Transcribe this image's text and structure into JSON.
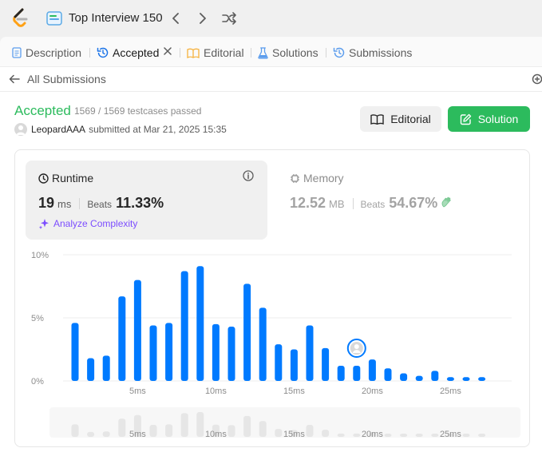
{
  "topbar": {
    "list_title": "Top Interview 150",
    "icons": [
      "leetcode-logo",
      "list-icon",
      "chevron-left-icon",
      "chevron-right-icon",
      "shuffle-icon"
    ]
  },
  "tabs": [
    {
      "label": "Description",
      "icon": "description-icon"
    },
    {
      "label": "Accepted",
      "icon": "history-icon",
      "active": true
    },
    {
      "label": "Editorial",
      "icon": "book-icon"
    },
    {
      "label": "Solutions",
      "icon": "flask-icon"
    },
    {
      "label": "Submissions",
      "icon": "history-icon"
    }
  ],
  "subbar": {
    "back_label": "All Submissions"
  },
  "submission": {
    "status": "Accepted",
    "testcases": "1569 / 1569 testcases passed",
    "author": "LeopardAAA",
    "submitted_text": "submitted at Mar 21, 2025 15:35"
  },
  "actions": {
    "editorial_label": "Editorial",
    "solution_label": "Solution"
  },
  "runtime": {
    "title": "Runtime",
    "value": "19",
    "unit": "ms",
    "beats_label": "Beats",
    "beats_value": "11.33%",
    "analyze_label": "Analyze Complexity"
  },
  "memory": {
    "title": "Memory",
    "value": "12.52",
    "unit": "MB",
    "beats_label": "Beats",
    "beats_value": "54.67%"
  },
  "colors": {
    "accepted": "#2cbb5d",
    "bar": "#007aff",
    "bar_muted": "#e6e6e6",
    "analyze": "#7c4dff"
  },
  "chart_data": {
    "type": "bar",
    "x": [
      1,
      2,
      3,
      4,
      5,
      6,
      7,
      8,
      9,
      10,
      11,
      12,
      13,
      14,
      15,
      16,
      17,
      18,
      19,
      20,
      21,
      22,
      23,
      24,
      25,
      26,
      27
    ],
    "values": [
      4.6,
      1.8,
      2.0,
      6.7,
      8.0,
      4.4,
      4.6,
      8.7,
      9.1,
      4.5,
      4.3,
      7.7,
      5.8,
      2.9,
      2.5,
      4.4,
      2.6,
      1.2,
      1.2,
      1.7,
      1.0,
      0.6,
      0.4,
      0.8,
      0.3,
      0.3,
      0.3
    ],
    "ylim": [
      0,
      10
    ],
    "yticks": [
      "0%",
      "5%",
      "10%"
    ],
    "xticks": [
      {
        "x": 5,
        "label": "5ms"
      },
      {
        "x": 10,
        "label": "10ms"
      },
      {
        "x": 15,
        "label": "15ms"
      },
      {
        "x": 20,
        "label": "20ms"
      },
      {
        "x": 25,
        "label": "25ms"
      }
    ],
    "highlight_x": 19,
    "grid": true
  }
}
